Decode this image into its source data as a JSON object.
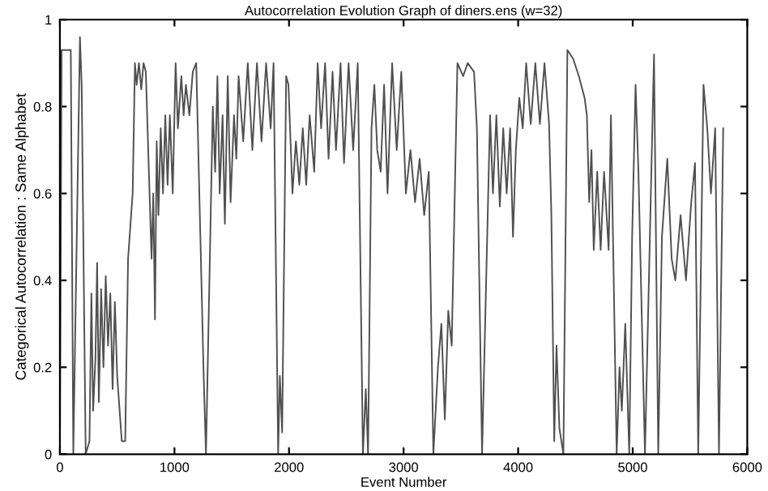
{
  "chart_data": {
    "type": "line",
    "title": "Autocorrelation Evolution Graph of diners.ens (w=32)",
    "xlabel": "Event Number",
    "ylabel": "Categorical Autocorrelation : Same Alphabet",
    "x": [
      0,
      15,
      95,
      117,
      175,
      190,
      225,
      258,
      275,
      290,
      310,
      325,
      340,
      360,
      380,
      400,
      420,
      440,
      460,
      480,
      500,
      540,
      570,
      595,
      635,
      655,
      670,
      690,
      710,
      730,
      750,
      800,
      815,
      830,
      845,
      860,
      880,
      900,
      920,
      940,
      960,
      985,
      1010,
      1030,
      1060,
      1080,
      1100,
      1130,
      1160,
      1190,
      1255,
      1275,
      1335,
      1355,
      1375,
      1395,
      1420,
      1440,
      1465,
      1490,
      1520,
      1540,
      1560,
      1600,
      1640,
      1680,
      1720,
      1760,
      1800,
      1840,
      1865,
      1905,
      1920,
      1940,
      1975,
      1995,
      2030,
      2060,
      2090,
      2120,
      2150,
      2180,
      2220,
      2250,
      2280,
      2315,
      2345,
      2380,
      2410,
      2450,
      2480,
      2520,
      2560,
      2600,
      2645,
      2670,
      2690,
      2720,
      2745,
      2770,
      2800,
      2830,
      2860,
      2900,
      2940,
      2980,
      3020,
      3060,
      3100,
      3140,
      3180,
      3220,
      3260,
      3300,
      3330,
      3360,
      3390,
      3420,
      3470,
      3520,
      3560,
      3615,
      3640,
      3685,
      3755,
      3780,
      3810,
      3840,
      3870,
      3900,
      3930,
      3955,
      3980,
      4010,
      4040,
      4070,
      4110,
      4150,
      4190,
      4230,
      4270,
      4290,
      4315,
      4335,
      4360,
      4395,
      4430,
      4480,
      4530,
      4580,
      4600,
      4620,
      4640,
      4660,
      4690,
      4720,
      4750,
      4790,
      4810,
      4860,
      4885,
      4905,
      4935,
      4970,
      4995,
      5025,
      5050,
      5107,
      5186,
      5223,
      5255,
      5302,
      5340,
      5372,
      5418,
      5465,
      5511,
      5544,
      5572,
      5618,
      5651,
      5683,
      5720,
      5753,
      5790
    ],
    "series": [
      {
        "color": "#505050",
        "values": [
          0,
          0.93,
          0.93,
          0,
          0.96,
          0.85,
          0,
          0.03,
          0.37,
          0.1,
          0.22,
          0.44,
          0.12,
          0.38,
          0.2,
          0.41,
          0.25,
          0.37,
          0.15,
          0.35,
          0.18,
          0.03,
          0.03,
          0.45,
          0.6,
          0.9,
          0.85,
          0.9,
          0.84,
          0.9,
          0.88,
          0.45,
          0.6,
          0.31,
          0.72,
          0.55,
          0.75,
          0.6,
          0.78,
          0.62,
          0.78,
          0.6,
          0.9,
          0.75,
          0.87,
          0.78,
          0.85,
          0.78,
          0.88,
          0.9,
          0.18,
          0,
          0.8,
          0.65,
          0.87,
          0.6,
          0.78,
          0.53,
          0.87,
          0.58,
          0.78,
          0.68,
          0.87,
          0.72,
          0.9,
          0.7,
          0.9,
          0.72,
          0.9,
          0.75,
          0.9,
          0,
          0.18,
          0.05,
          0.87,
          0.85,
          0.6,
          0.72,
          0.62,
          0.75,
          0.62,
          0.78,
          0.65,
          0.9,
          0.75,
          0.9,
          0.68,
          0.88,
          0.7,
          0.9,
          0.67,
          0.9,
          0.7,
          0.9,
          0,
          0.15,
          0,
          0.75,
          0.85,
          0.7,
          0.65,
          0.85,
          0.6,
          0.9,
          0.7,
          0.88,
          0.6,
          0.7,
          0.58,
          0.68,
          0.55,
          0.65,
          0,
          0.2,
          0.3,
          0.08,
          0.33,
          0.25,
          0.9,
          0.87,
          0.9,
          0.88,
          0.75,
          0,
          0.78,
          0.6,
          0.78,
          0.57,
          0.75,
          0.6,
          0.75,
          0.5,
          0.7,
          0.82,
          0.75,
          0.9,
          0.76,
          0.9,
          0.76,
          0.9,
          0.76,
          0.55,
          0.03,
          0.25,
          0.06,
          0,
          0.93,
          0.91,
          0.87,
          0.82,
          0.78,
          0.58,
          0.7,
          0.47,
          0.65,
          0.47,
          0.65,
          0.47,
          0.78,
          0,
          0.2,
          0.1,
          0.3,
          0,
          0.5,
          0.85,
          0.65,
          0,
          0.92,
          0,
          0.5,
          0.68,
          0.45,
          0.4,
          0.55,
          0.4,
          0.58,
          0.67,
          0,
          0.85,
          0.75,
          0.6,
          0.75,
          0,
          0.75
        ]
      }
    ],
    "xlim": [
      0,
      6000
    ],
    "ylim": [
      0,
      1
    ],
    "xticks": [
      0,
      1000,
      2000,
      3000,
      4000,
      5000,
      6000
    ],
    "yticks": [
      0,
      0.2,
      0.4,
      0.6,
      0.8,
      1
    ],
    "grid": false,
    "legend": false,
    "marker": "none",
    "line_style": "solid"
  }
}
